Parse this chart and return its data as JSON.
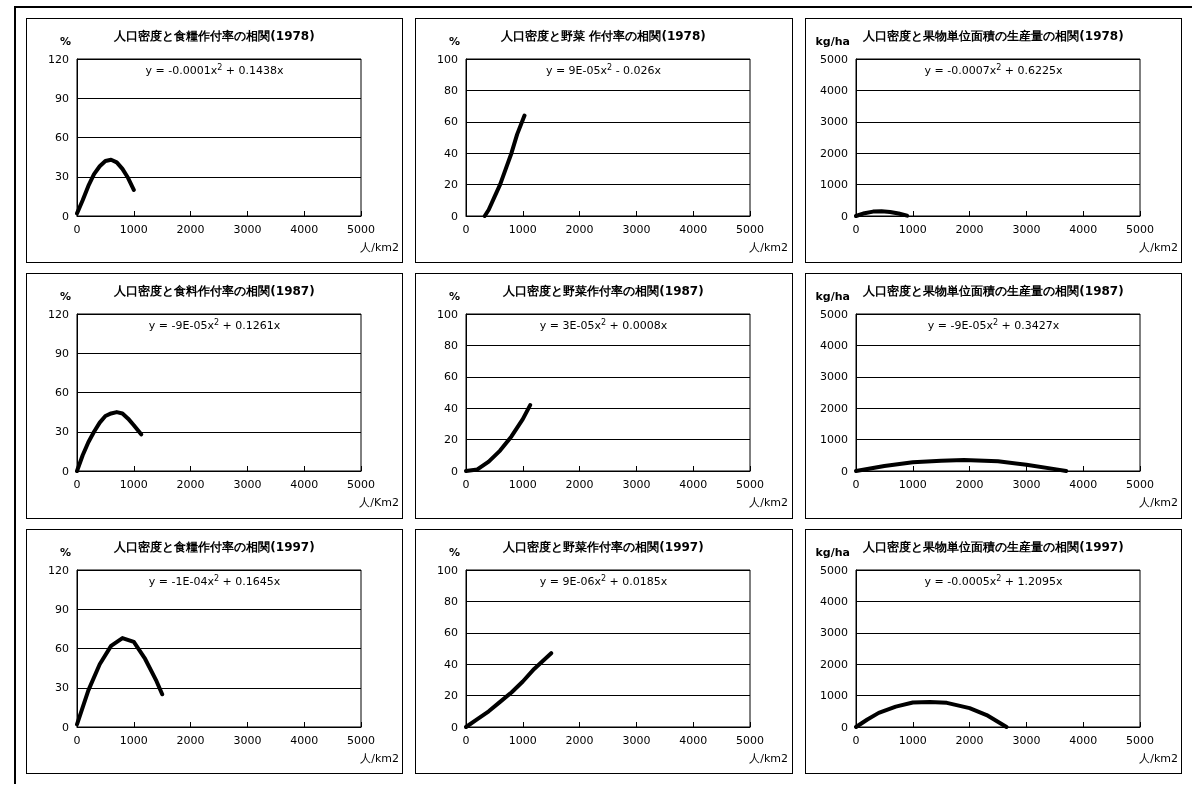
{
  "chart_data": [
    {
      "type": "line",
      "title": "人口密度と食糧作付率の相関(1978)",
      "xlabel": "人/km2",
      "ylabel": "%",
      "annotations": [
        "y = -0.0001x$^{2}$ + 0.1438x"
      ],
      "x": [
        0,
        100,
        200,
        300,
        400,
        500,
        600,
        700,
        800,
        900,
        1000
      ],
      "series": [
        {
          "color": "#000000",
          "values": [
            2,
            12,
            23,
            32,
            38,
            42,
            43,
            41,
            36,
            29,
            20
          ]
        }
      ],
      "xlim": [
        0,
        5000
      ],
      "xticks": [
        0,
        1000,
        2000,
        3000,
        4000,
        5000
      ],
      "ylim": [
        0,
        120
      ],
      "yticks": [
        0,
        30,
        60,
        90,
        120
      ],
      "grid": "y",
      "marker": "none"
    },
    {
      "type": "line",
      "title": "人口密度と野菜 作付率の相関(1978)",
      "xlabel": "人/km2",
      "ylabel": "%",
      "annotations": [
        "y = 9E-05x$^{2}$ - 0.026x"
      ],
      "x": [
        330,
        400,
        500,
        600,
        700,
        800,
        900,
        1030
      ],
      "series": [
        {
          "color": "#000000",
          "values": [
            0,
            4,
            12,
            20,
            30,
            40,
            52,
            64
          ]
        }
      ],
      "xlim": [
        0,
        5000
      ],
      "xticks": [
        0,
        1000,
        2000,
        3000,
        4000,
        5000
      ],
      "ylim": [
        0,
        100
      ],
      "yticks": [
        0,
        20,
        40,
        60,
        80,
        100
      ],
      "grid": "y",
      "marker": "none"
    },
    {
      "type": "line",
      "title": "人口密度と果物単位面積の生産量の相関(1978)",
      "xlabel": "人/km2",
      "ylabel": "kg/ha",
      "annotations": [
        "y = -0.0007x$^{2}$ + 0.6225x"
      ],
      "x": [
        0,
        150,
        300,
        450,
        600,
        750,
        900
      ],
      "series": [
        {
          "color": "#000000",
          "values": [
            0,
            90,
            140,
            150,
            130,
            80,
            10
          ]
        }
      ],
      "xlim": [
        0,
        5000
      ],
      "xticks": [
        0,
        1000,
        2000,
        3000,
        4000,
        5000
      ],
      "ylim": [
        0,
        5000
      ],
      "yticks": [
        0,
        1000,
        2000,
        3000,
        4000,
        5000
      ],
      "grid": "y",
      "marker": "none"
    },
    {
      "type": "line",
      "title": "人口密度と食料作付率の相関(1987)",
      "xlabel": "人/Km2",
      "ylabel": "%",
      "annotations": [
        "y = -9E-05x$^{2}$ + 0.1261x"
      ],
      "x": [
        0,
        100,
        200,
        300,
        400,
        500,
        600,
        700,
        800,
        900,
        1000,
        1130
      ],
      "series": [
        {
          "color": "#000000",
          "values": [
            0,
            12,
            22,
            30,
            37,
            42,
            44,
            45,
            44,
            40,
            35,
            28
          ]
        }
      ],
      "xlim": [
        0,
        5000
      ],
      "xticks": [
        0,
        1000,
        2000,
        3000,
        4000,
        5000
      ],
      "ylim": [
        0,
        120
      ],
      "yticks": [
        0,
        30,
        60,
        90,
        120
      ],
      "grid": "y",
      "marker": "none"
    },
    {
      "type": "line",
      "title": "人口密度と野菜作付率の相関(1987)",
      "xlabel": "人/km2",
      "ylabel": "%",
      "annotations": [
        "y = 3E-05x$^{2}$ + 0.0008x"
      ],
      "x": [
        0,
        200,
        400,
        600,
        800,
        1000,
        1130
      ],
      "series": [
        {
          "color": "#000000",
          "values": [
            0,
            1,
            6,
            13,
            22,
            33,
            42
          ]
        }
      ],
      "xlim": [
        0,
        5000
      ],
      "xticks": [
        0,
        1000,
        2000,
        3000,
        4000,
        5000
      ],
      "ylim": [
        0,
        100
      ],
      "yticks": [
        0,
        20,
        40,
        60,
        80,
        100
      ],
      "grid": "y",
      "marker": "none"
    },
    {
      "type": "line",
      "title": "人口密度と果物単位面積の生産量の相関(1987)",
      "xlabel": "人/km2",
      "ylabel": "kg/ha",
      "annotations": [
        "y = -9E-05x$^{2}$ + 0.3427x"
      ],
      "x": [
        0,
        500,
        1000,
        1500,
        1900,
        2500,
        3000,
        3500,
        3700
      ],
      "series": [
        {
          "color": "#000000",
          "values": [
            0,
            160,
            280,
            330,
            350,
            310,
            200,
            60,
            0
          ]
        }
      ],
      "xlim": [
        0,
        5000
      ],
      "xticks": [
        0,
        1000,
        2000,
        3000,
        4000,
        5000
      ],
      "ylim": [
        0,
        5000
      ],
      "yticks": [
        0,
        1000,
        2000,
        3000,
        4000,
        5000
      ],
      "grid": "y",
      "marker": "none"
    },
    {
      "type": "line",
      "title": "人口密度と食糧作付率の相関(1997)",
      "xlabel": "人/km2",
      "ylabel": "%",
      "annotations": [
        "y = -1E-04x$^{2}$ + 0.1645x"
      ],
      "x": [
        0,
        100,
        200,
        400,
        600,
        800,
        1000,
        1200,
        1400,
        1500
      ],
      "series": [
        {
          "color": "#000000",
          "values": [
            2,
            15,
            28,
            48,
            62,
            68,
            65,
            52,
            35,
            25
          ]
        }
      ],
      "xlim": [
        0,
        5000
      ],
      "xticks": [
        0,
        1000,
        2000,
        3000,
        4000,
        5000
      ],
      "ylim": [
        0,
        120
      ],
      "yticks": [
        0,
        30,
        60,
        90,
        120
      ],
      "grid": "y",
      "marker": "none"
    },
    {
      "type": "line",
      "title": "人口密度と野菜作付率の相関(1997)",
      "xlabel": "人/km2",
      "ylabel": "%",
      "annotations": [
        "y = 9E-06x$^{2}$ + 0.0185x"
      ],
      "x": [
        0,
        200,
        400,
        600,
        800,
        1000,
        1200,
        1500
      ],
      "series": [
        {
          "color": "#000000",
          "values": [
            0,
            5,
            10,
            16,
            22,
            29,
            37,
            47
          ]
        }
      ],
      "xlim": [
        0,
        5000
      ],
      "xticks": [
        0,
        1000,
        2000,
        3000,
        4000,
        5000
      ],
      "ylim": [
        0,
        100
      ],
      "yticks": [
        0,
        20,
        40,
        60,
        80,
        100
      ],
      "grid": "y",
      "marker": "none"
    },
    {
      "type": "line",
      "title": "人口密度と果物単位面積の生産量の相関(1997)",
      "xlabel": "人/km2",
      "ylabel": "kg/ha",
      "annotations": [
        "y = -0.0005x$^{2}$ + 1.2095x"
      ],
      "x": [
        0,
        200,
        400,
        700,
        1000,
        1300,
        1600,
        2000,
        2300,
        2650
      ],
      "series": [
        {
          "color": "#000000",
          "values": [
            0,
            240,
            450,
            650,
            780,
            800,
            770,
            600,
            380,
            0
          ]
        }
      ],
      "xlim": [
        0,
        5000
      ],
      "xticks": [
        0,
        1000,
        2000,
        3000,
        4000,
        5000
      ],
      "ylim": [
        0,
        5000
      ],
      "yticks": [
        0,
        1000,
        2000,
        3000,
        4000,
        5000
      ],
      "grid": "y",
      "marker": "none"
    }
  ]
}
